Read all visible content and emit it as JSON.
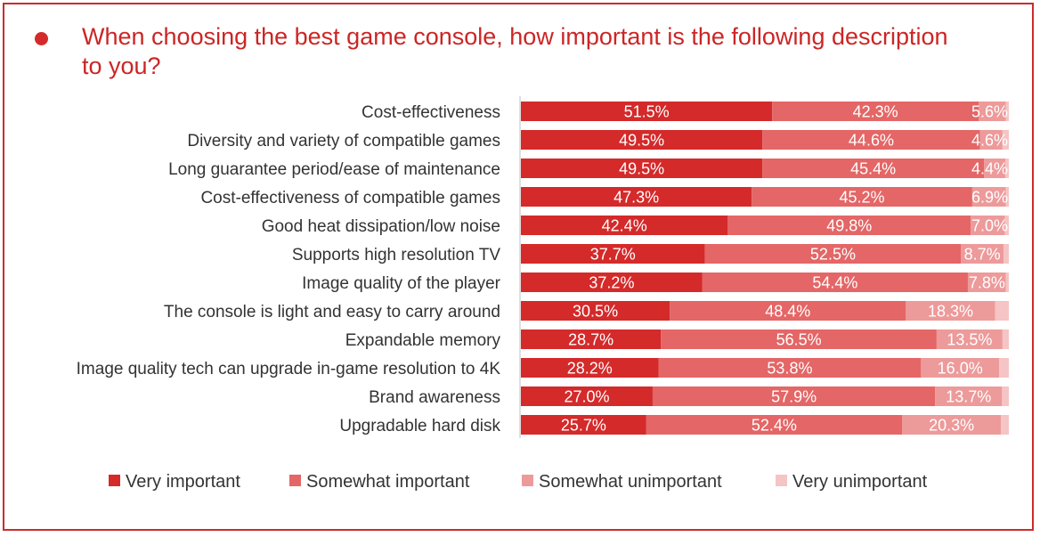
{
  "title": "When choosing the best game console, how important is the following description to you?",
  "chart_data": {
    "type": "bar",
    "orientation": "horizontal",
    "stacked": true,
    "title": "When choosing the best game console, how important is the following description to you?",
    "categories": [
      "Cost-effectiveness",
      "Diversity and variety of compatible games",
      "Long guarantee period/ease of maintenance",
      "Cost-effectiveness of compatible games",
      "Good heat dissipation/low noise",
      "Supports high resolution TV",
      "Image quality of the player",
      "The console is light and easy to carry around",
      "Expandable memory",
      "Image quality tech can upgrade in-game resolution to 4K",
      "Brand awareness",
      "Upgradable hard disk"
    ],
    "series": [
      {
        "name": "Very important",
        "color": "#d42a2a",
        "values": [
          51.5,
          49.5,
          49.5,
          47.3,
          42.4,
          37.7,
          37.2,
          30.5,
          28.7,
          28.2,
          27.0,
          25.7
        ]
      },
      {
        "name": "Somewhat important",
        "color": "#e46666",
        "values": [
          42.3,
          44.6,
          45.4,
          45.2,
          49.8,
          52.5,
          54.4,
          48.4,
          56.5,
          53.8,
          57.9,
          52.4
        ]
      },
      {
        "name": "Somewhat unimportant",
        "color": "#ed9a9a",
        "values": [
          5.6,
          4.6,
          4.4,
          6.9,
          7.0,
          8.7,
          7.8,
          18.3,
          13.5,
          16.0,
          13.7,
          20.3
        ]
      },
      {
        "name": "Very unimportant",
        "color": "#f5c4c4",
        "values": [
          0.6,
          1.3,
          0.7,
          0.6,
          0.8,
          1.1,
          0.6,
          2.8,
          1.3,
          2.0,
          1.4,
          1.6
        ]
      }
    ],
    "labels": [
      [
        "51.5%",
        "49.5%",
        "49.5%",
        "47.3%",
        "42.4%",
        "37.7%",
        "37.2%",
        "30.5%",
        "28.7%",
        "28.2%",
        "27.0%",
        "25.7%"
      ],
      [
        "42.3%",
        "44.6%",
        "45.4%",
        "45.2%",
        "49.8%",
        "52.5%",
        "54.4%",
        "48.4%",
        "56.5%",
        "53.8%",
        "57.9%",
        "52.4%"
      ],
      [
        "5.6%",
        "4.6%",
        "4.4%",
        "6.9%",
        "7.0%",
        "8.7%",
        "7.8%",
        "18.3%",
        "13.5%",
        "16.0%",
        "13.7%",
        "20.3%"
      ]
    ],
    "xlim": [
      0,
      100
    ],
    "unit": "%",
    "legend": "bottom"
  }
}
